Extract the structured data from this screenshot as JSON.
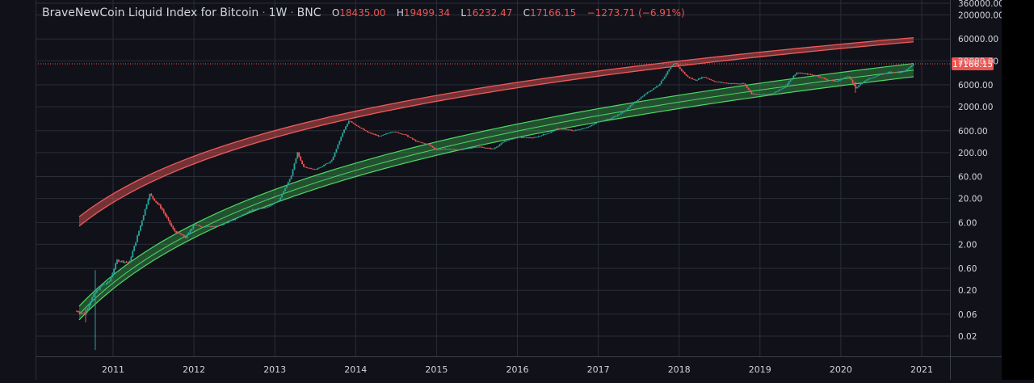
{
  "header": {
    "symbol": "BraveNewCoin Liquid Index for Bitcoin",
    "interval": "1W",
    "exchange": "BNC",
    "open_key": "O",
    "open": "18435.00",
    "high_key": "H",
    "high": "19499.34",
    "low_key": "L",
    "low": "16232.47",
    "close_key": "C",
    "close": "17166.15",
    "change": "−1273.71 (−6.91%)"
  },
  "colors": {
    "background": "#111119",
    "grid": "#2a2e39",
    "up": "#26a69a",
    "down": "#ef5350",
    "upper_band": "#f05a5a",
    "lower_band": "#4cd964",
    "axis_text": "#d1d4dc"
  },
  "chart_data": {
    "type": "candlestick",
    "title": "BraveNewCoin Liquid Index for Bitcoin",
    "interval": "1W",
    "y_scale": "log",
    "ylim": [
      0.008,
      300000
    ],
    "y_ticks": [
      {
        "value": 360000,
        "label": "360000.00"
      },
      {
        "value": 200000,
        "label": "200000.00"
      },
      {
        "value": 60000,
        "label": "60000.00"
      },
      {
        "value": 20000,
        "label": "20000.00"
      },
      {
        "value": 6000,
        "label": "6000.00"
      },
      {
        "value": 2000,
        "label": "2000.00"
      },
      {
        "value": 600,
        "label": "600.00"
      },
      {
        "value": 200,
        "label": "200.00"
      },
      {
        "value": 60,
        "label": "60.00"
      },
      {
        "value": 20,
        "label": "20.00"
      },
      {
        "value": 6,
        "label": "6.00"
      },
      {
        "value": 2,
        "label": "2.00"
      },
      {
        "value": 0.6,
        "label": "0.60"
      },
      {
        "value": 0.2,
        "label": "0.20"
      },
      {
        "value": 0.06,
        "label": "0.06"
      },
      {
        "value": 0.02,
        "label": "0.02"
      }
    ],
    "x_range": [
      2010.45,
      2021.25
    ],
    "x_ticks": [
      {
        "value": 2011,
        "label": "2011"
      },
      {
        "value": 2012,
        "label": "2012"
      },
      {
        "value": 2013,
        "label": "2013"
      },
      {
        "value": 2014,
        "label": "2014"
      },
      {
        "value": 2015,
        "label": "2015"
      },
      {
        "value": 2016,
        "label": "2016"
      },
      {
        "value": 2017,
        "label": "2017"
      },
      {
        "value": 2018,
        "label": "2018"
      },
      {
        "value": 2019,
        "label": "2019"
      },
      {
        "value": 2020,
        "label": "2020"
      },
      {
        "value": 2021,
        "label": "2021"
      }
    ],
    "last_price": {
      "value": 17166.15,
      "label": "17166.15"
    },
    "price_path": [
      [
        2010.55,
        0.07
      ],
      [
        2010.65,
        0.06
      ],
      [
        2010.75,
        0.15
      ],
      [
        2010.85,
        0.25
      ],
      [
        2010.95,
        0.3
      ],
      [
        2011.05,
        0.9
      ],
      [
        2011.2,
        0.8
      ],
      [
        2011.3,
        3
      ],
      [
        2011.45,
        25
      ],
      [
        2011.6,
        12
      ],
      [
        2011.75,
        4
      ],
      [
        2011.9,
        2.8
      ],
      [
        2012.0,
        5.5
      ],
      [
        2012.1,
        4.8
      ],
      [
        2012.3,
        5
      ],
      [
        2012.5,
        7
      ],
      [
        2012.7,
        11
      ],
      [
        2012.9,
        13
      ],
      [
        2013.05,
        18
      ],
      [
        2013.2,
        60
      ],
      [
        2013.28,
        200
      ],
      [
        2013.35,
        100
      ],
      [
        2013.5,
        85
      ],
      [
        2013.7,
        130
      ],
      [
        2013.85,
        600
      ],
      [
        2013.92,
        1000
      ],
      [
        2014.0,
        800
      ],
      [
        2014.15,
        550
      ],
      [
        2014.3,
        450
      ],
      [
        2014.45,
        580
      ],
      [
        2014.6,
        500
      ],
      [
        2014.75,
        350
      ],
      [
        2014.9,
        300
      ],
      [
        2015.0,
        230
      ],
      [
        2015.1,
        240
      ],
      [
        2015.3,
        230
      ],
      [
        2015.5,
        270
      ],
      [
        2015.7,
        240
      ],
      [
        2015.85,
        360
      ],
      [
        2016.0,
        430
      ],
      [
        2016.2,
        420
      ],
      [
        2016.4,
        550
      ],
      [
        2016.5,
        670
      ],
      [
        2016.7,
        600
      ],
      [
        2016.9,
        750
      ],
      [
        2017.0,
        950
      ],
      [
        2017.15,
        1100
      ],
      [
        2017.3,
        1500
      ],
      [
        2017.45,
        2500
      ],
      [
        2017.6,
        4000
      ],
      [
        2017.75,
        6000
      ],
      [
        2017.9,
        15000
      ],
      [
        2017.96,
        18000
      ],
      [
        2018.0,
        14000
      ],
      [
        2018.1,
        9000
      ],
      [
        2018.2,
        7500
      ],
      [
        2018.3,
        9000
      ],
      [
        2018.45,
        7000
      ],
      [
        2018.6,
        6500
      ],
      [
        2018.8,
        6300
      ],
      [
        2018.9,
        3800
      ],
      [
        2019.0,
        3700
      ],
      [
        2019.15,
        3800
      ],
      [
        2019.3,
        5300
      ],
      [
        2019.45,
        11000
      ],
      [
        2019.55,
        10500
      ],
      [
        2019.7,
        9500
      ],
      [
        2019.85,
        7500
      ],
      [
        2019.95,
        7200
      ],
      [
        2020.1,
        9500
      ],
      [
        2020.18,
        5000
      ],
      [
        2020.3,
        7500
      ],
      [
        2020.45,
        9500
      ],
      [
        2020.6,
        11500
      ],
      [
        2020.75,
        11000
      ],
      [
        2020.83,
        13500
      ],
      [
        2020.9,
        17166
      ]
    ],
    "bands": {
      "upper": {
        "top_start": 8,
        "top_end": 64000,
        "bottom_start": 5,
        "bottom_end": 52000
      },
      "lower": {
        "top_start": 0.09,
        "top_end": 17500,
        "mid_start": 0.06,
        "mid_end": 12500,
        "bottom_start": 0.045,
        "bottom_end": 9000
      }
    }
  }
}
